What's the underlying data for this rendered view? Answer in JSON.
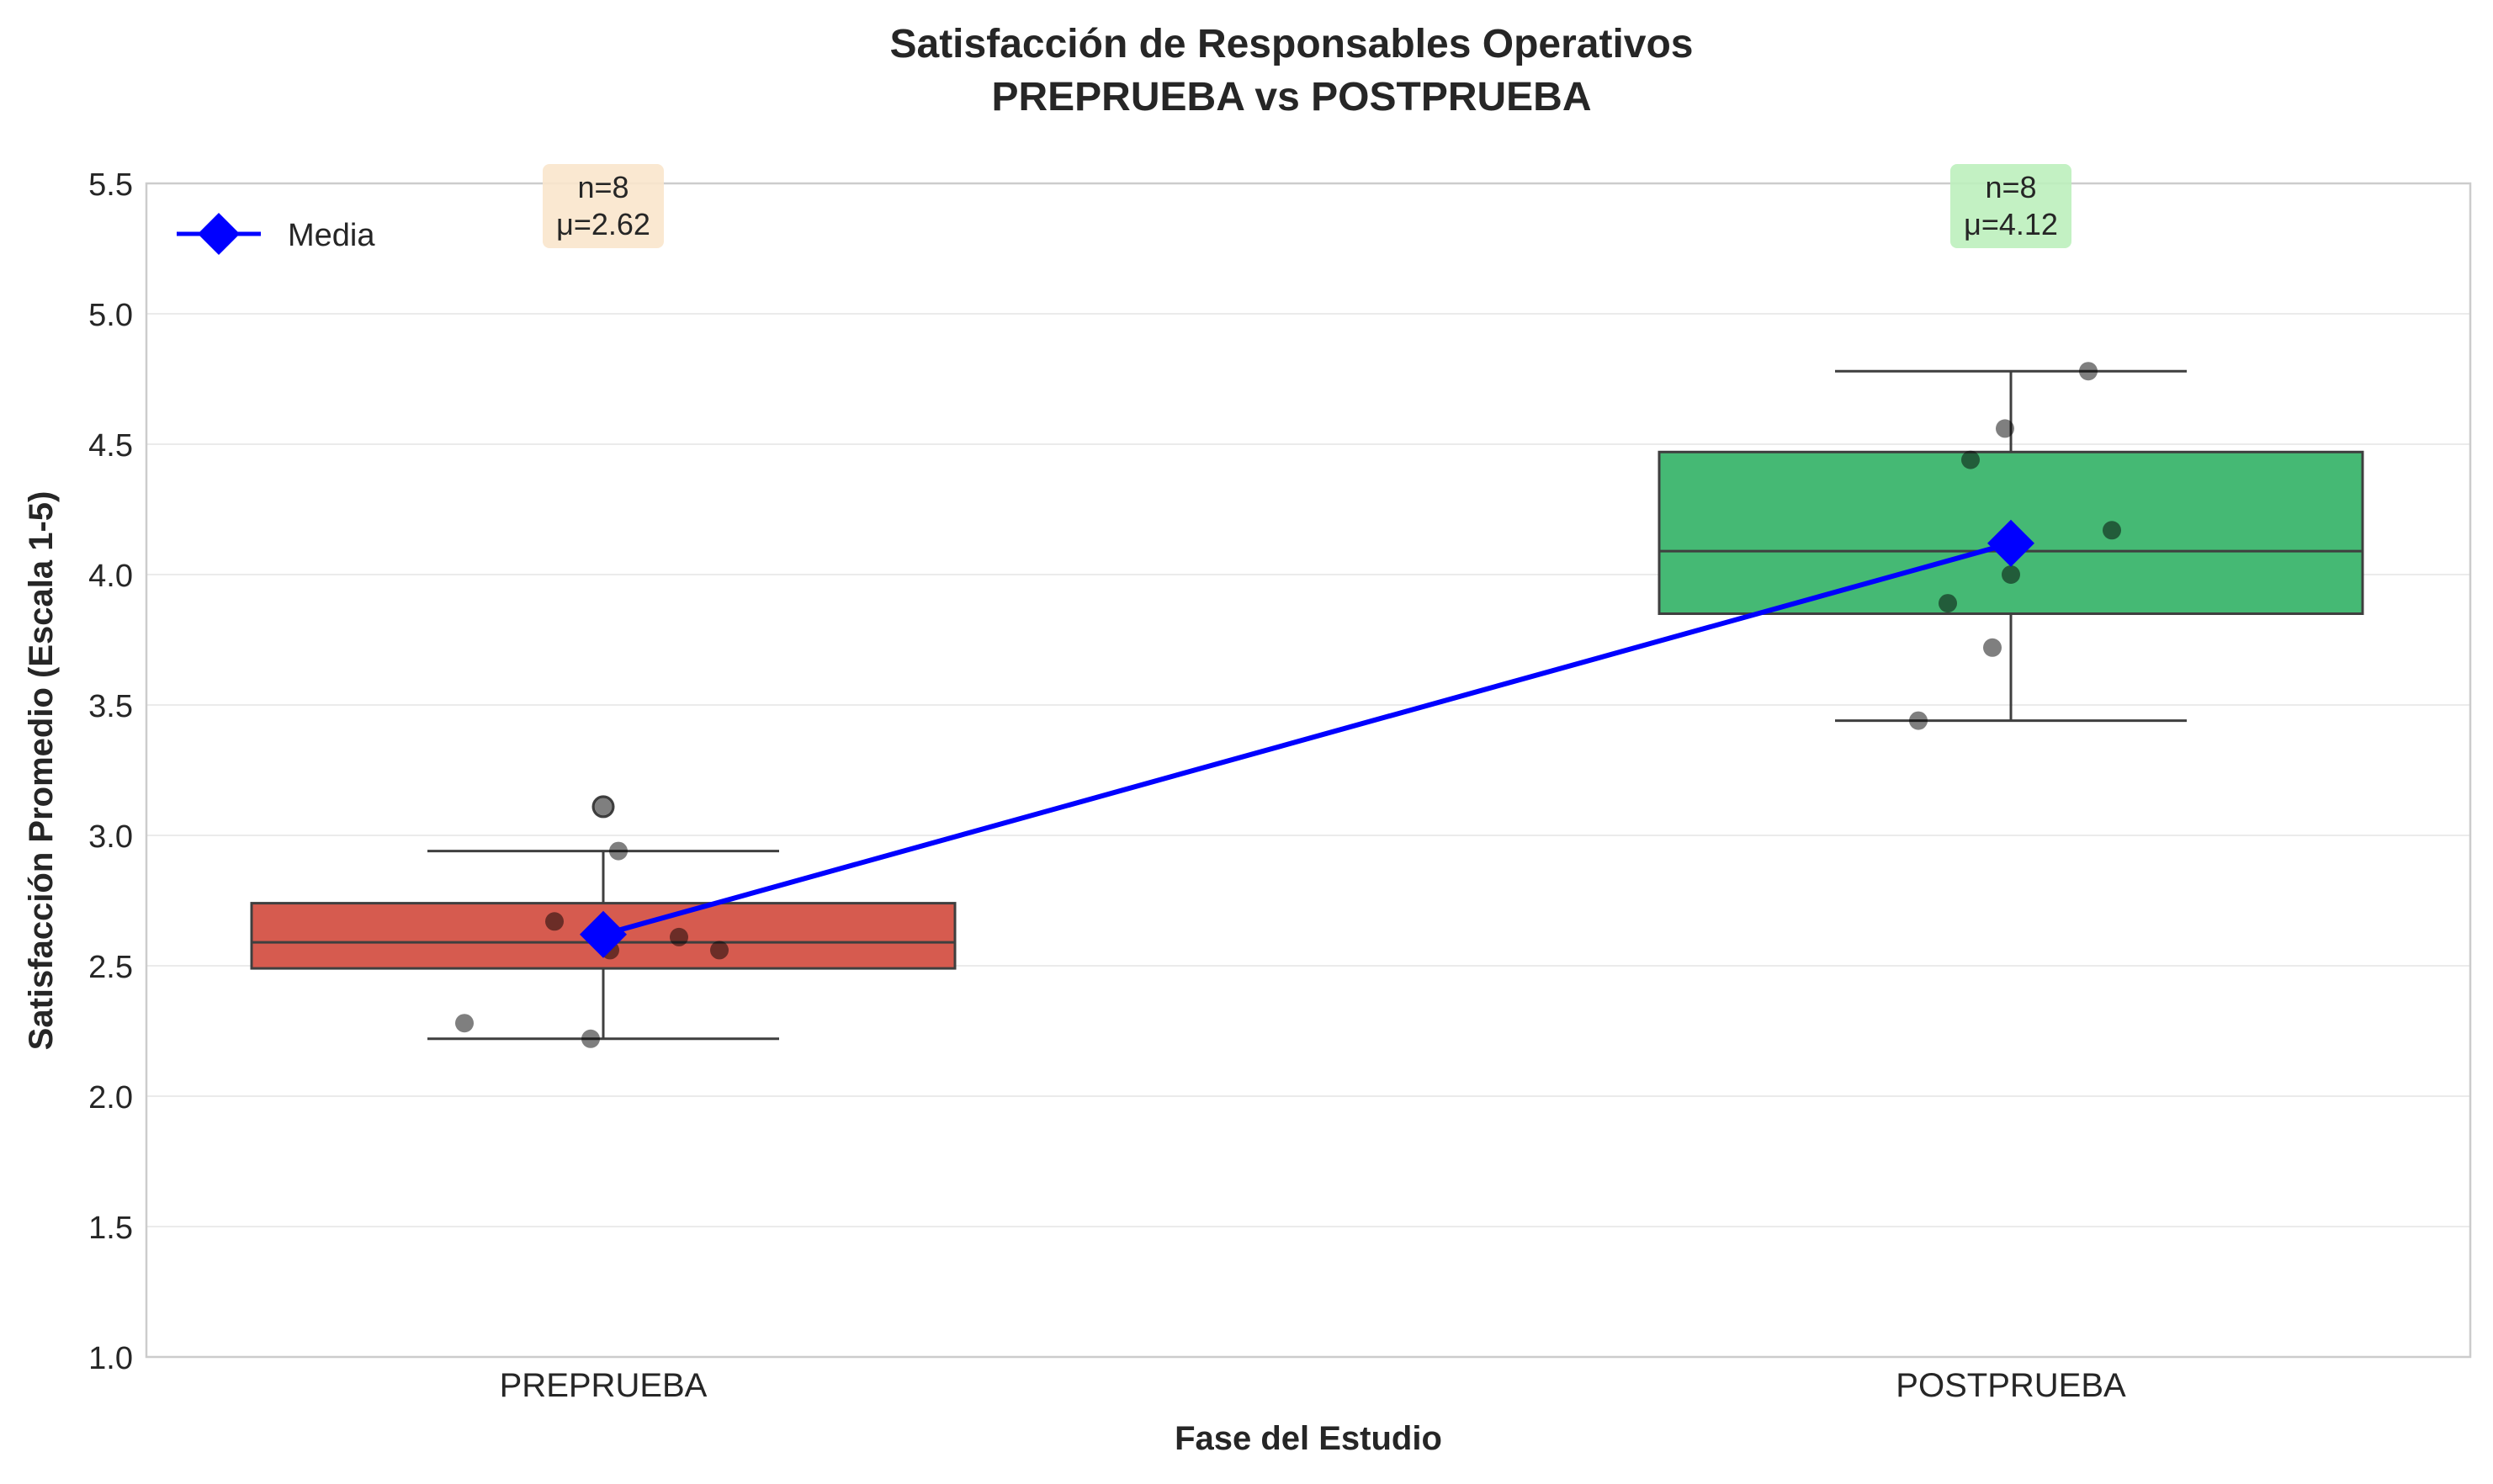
{
  "chart_data": {
    "type": "box",
    "title": "Satisfacción de Responsables Operativos",
    "subtitle": "PREPRUEBA vs POSTPRUEBA",
    "xlabel": "Fase del Estudio",
    "ylabel": "Satisfacción Promedio (Escala 1-5)",
    "ylim": [
      1.0,
      5.5
    ],
    "yticks": [
      "1.0",
      "1.5",
      "2.0",
      "2.5",
      "3.0",
      "3.5",
      "4.0",
      "4.5",
      "5.0",
      "5.5"
    ],
    "grid": true,
    "legend": {
      "placement": "top-left",
      "entries": [
        "Media"
      ]
    },
    "categories": [
      "PREPRUEBA",
      "POSTPRUEBA"
    ],
    "boxes": [
      {
        "name": "PREPRUEBA",
        "color": "#d65b4f",
        "q1": 2.49,
        "median": 2.59,
        "q3": 2.74,
        "whisker_low": 2.22,
        "whisker_high": 2.94,
        "outliers": [
          3.11
        ],
        "points": [
          2.28,
          2.22,
          2.67,
          2.94,
          2.56,
          2.61,
          2.56,
          3.11
        ],
        "annotation_n": "n=8",
        "annotation_mean": "μ=2.62",
        "annotation_color": "#f9e6cc"
      },
      {
        "name": "POSTPRUEBA",
        "color": "#45b974",
        "q1": 3.85,
        "median": 4.09,
        "q3": 4.47,
        "whisker_low": 3.44,
        "whisker_high": 4.78,
        "outliers": [],
        "points": [
          3.44,
          3.89,
          3.72,
          4.0,
          4.44,
          4.56,
          4.17,
          4.78
        ],
        "annotation_n": "n=8",
        "annotation_mean": "μ=4.12",
        "annotation_color": "#bdf0bd"
      }
    ],
    "mean_series": {
      "name": "Media",
      "values": [
        2.62,
        4.12
      ],
      "color": "#0000ff"
    }
  }
}
